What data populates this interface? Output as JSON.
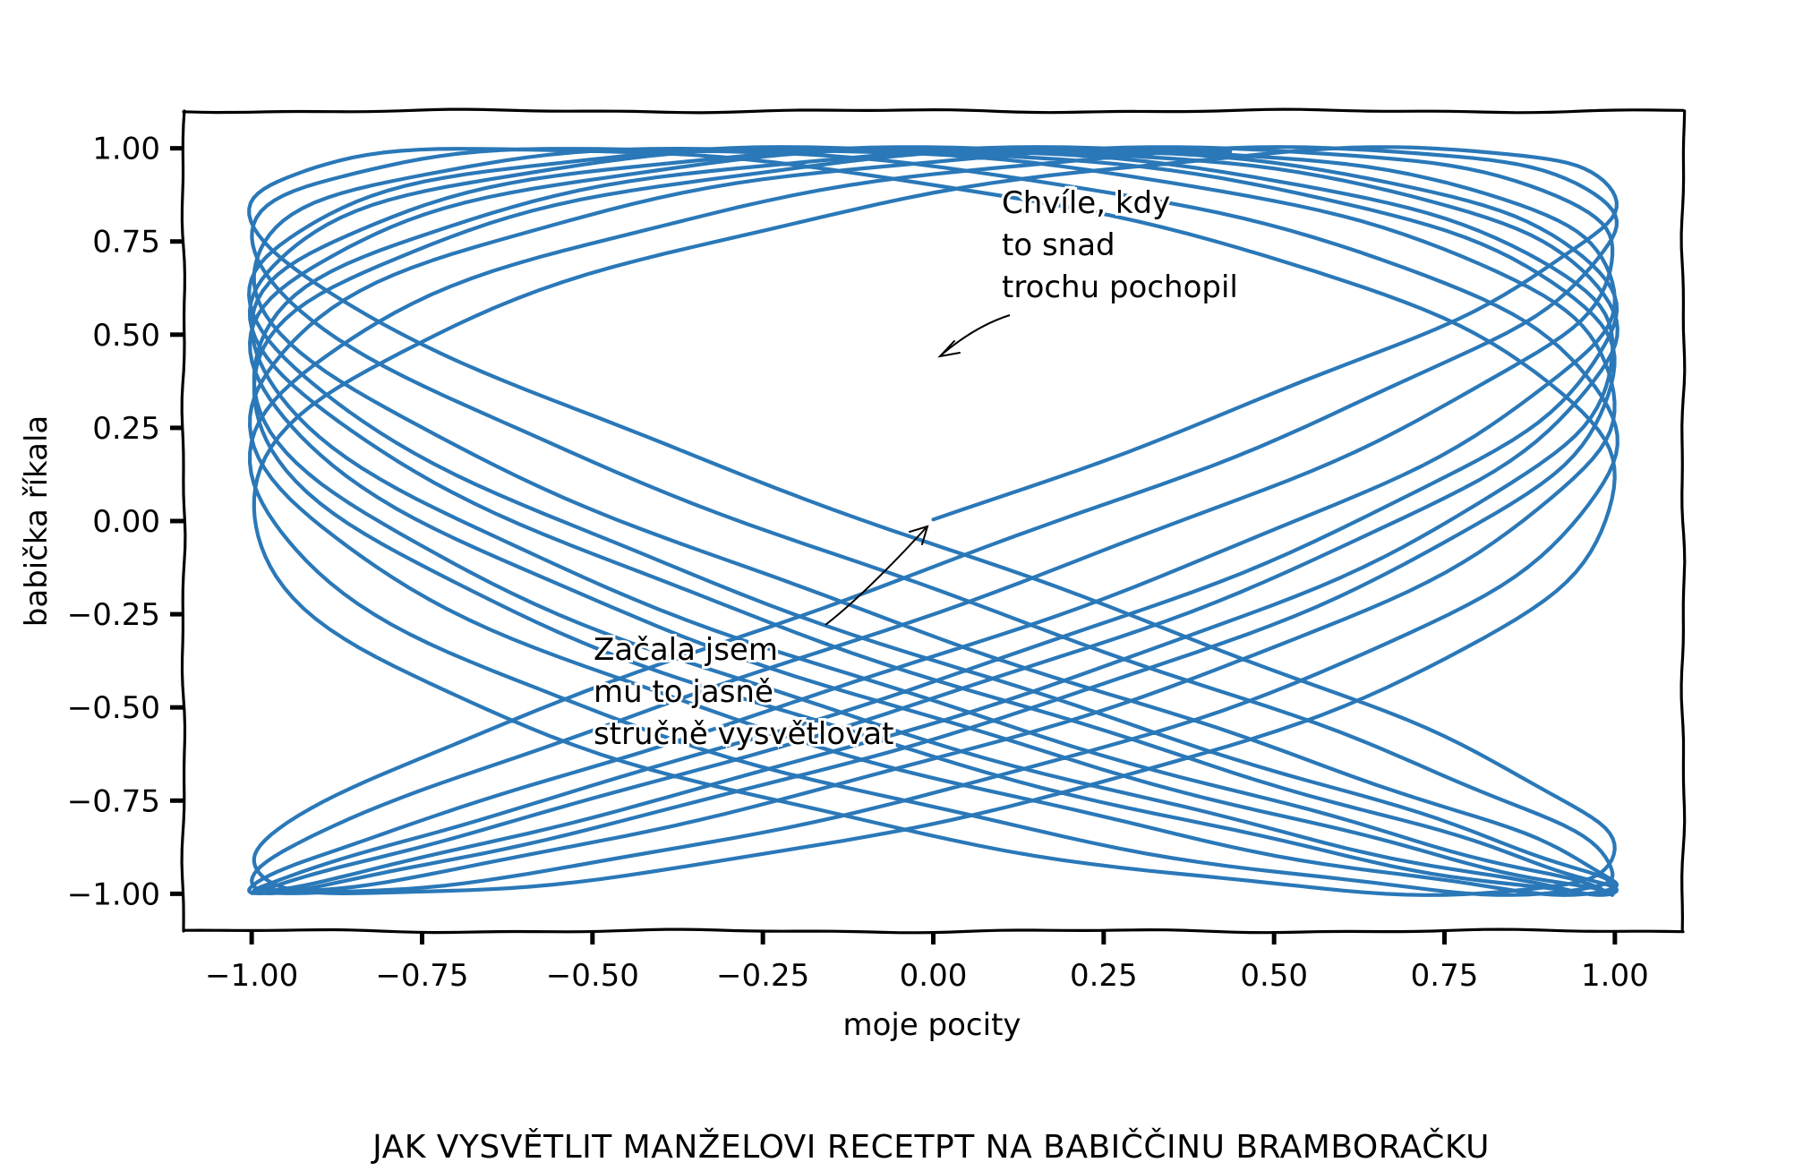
{
  "chart_data": {
    "type": "line",
    "title": "",
    "xlabel": "moje pocity",
    "ylabel": "babička říkala",
    "xlim": [
      -1.1,
      1.1
    ],
    "ylim": [
      -1.1,
      1.1
    ],
    "xticks": [
      "−1.00",
      "−0.75",
      "−0.50",
      "−0.25",
      "0.00",
      "0.25",
      "0.50",
      "0.75",
      "1.00"
    ],
    "yticks": [
      "1.00",
      "0.75",
      "0.50",
      "0.25",
      "0.00",
      "−0.25",
      "−0.50",
      "−0.75",
      "−1.00"
    ],
    "xtick_values": [
      -1,
      -0.75,
      -0.5,
      -0.25,
      0,
      0.25,
      0.5,
      0.75,
      1
    ],
    "ytick_values": [
      1,
      0.75,
      0.5,
      0.25,
      0,
      -0.25,
      -0.5,
      -0.75,
      -1
    ],
    "grid": false,
    "style": "xkcd",
    "series": [
      {
        "color": "#2a78b8",
        "curve": "lissajous",
        "x_of_t": "sin(3.03 t)",
        "y_of_t": "sin(2 t)",
        "t_range": [
          0,
          35.4
        ]
      }
    ],
    "annotations": [
      {
        "lines": [
          "Chvíle, kdy",
          "to snad",
          "trochu pochopil"
        ],
        "point": [
          0.0,
          0.44
        ]
      },
      {
        "lines": [
          "Začala jsem",
          "mu to jasně",
          "stručně vysvětlovat"
        ],
        "point": [
          0.0,
          0.0
        ]
      }
    ]
  },
  "caption": "JAK VYSVĚTLIT MANŽELOVI RECETPT NA BABIČČINU BRAMBORAČKU"
}
